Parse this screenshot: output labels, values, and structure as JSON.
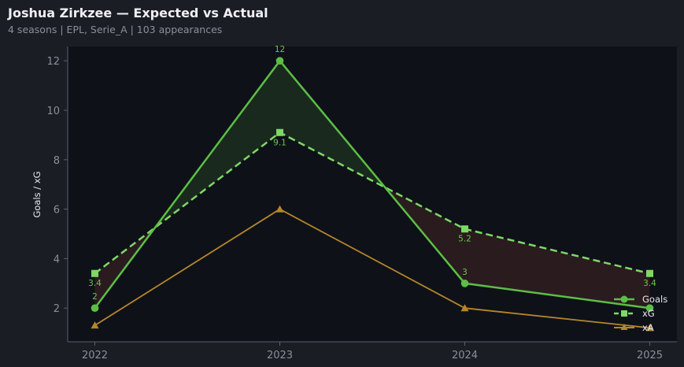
{
  "header": {
    "title": "Joshua Zirkzee — Expected vs Actual",
    "subtitle": "4 seasons | EPL, Serie_A | 103 appearances"
  },
  "colors": {
    "background": "#1a1d24",
    "plot_bg": "#0e1118",
    "goals": "#5bbf45",
    "xg": "#7dd864",
    "xa": "#b5862a",
    "over_fill": "#1b2b1f",
    "under_fill": "#2c1c20"
  },
  "chart_data": {
    "type": "line",
    "title": "Joshua Zirkzee — Expected vs Actual",
    "subtitle": "4 seasons | EPL, Serie_A | 103 appearances",
    "xlabel": "",
    "ylabel": "Goals / xG",
    "categories": [
      "2022",
      "2023",
      "2024",
      "2025"
    ],
    "yticks": [
      2,
      4,
      6,
      8,
      10,
      12
    ],
    "ylim": [
      0.6,
      12.6
    ],
    "grid": false,
    "legend_position": "lower right",
    "series": [
      {
        "name": "Goals",
        "values": [
          2,
          12,
          3,
          2
        ],
        "marker": "circle",
        "style": "solid",
        "labels": [
          "2",
          "12",
          "3",
          ""
        ]
      },
      {
        "name": "xG",
        "values": [
          3.4,
          9.1,
          5.2,
          3.4
        ],
        "marker": "square",
        "style": "dashed",
        "labels": [
          "3.4",
          "9.1",
          "5.2",
          "3.4"
        ]
      },
      {
        "name": "xA",
        "values": [
          1.3,
          6.0,
          2.0,
          1.2
        ],
        "marker": "triangle",
        "style": "solid"
      }
    ]
  },
  "legend": {
    "goals": "Goals",
    "xg": "xG",
    "xa": "xA"
  }
}
